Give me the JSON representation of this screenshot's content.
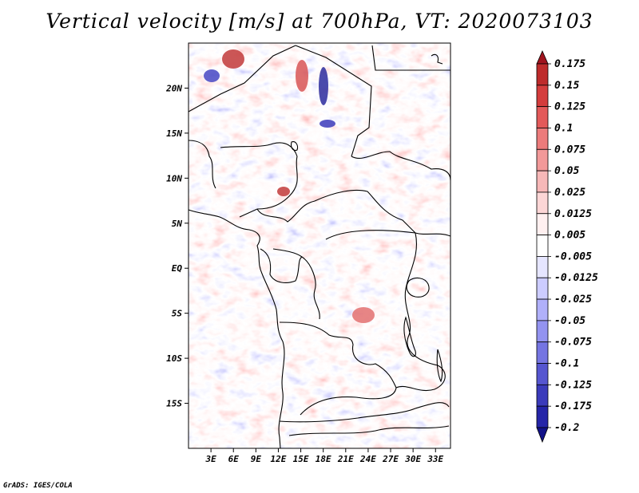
{
  "title": "Vertical velocity [m/s] at 700hPa, VT: 2020073103",
  "credit": "GrADS: IGES/COLA",
  "map": {
    "variable": "Vertical velocity",
    "units": "m/s",
    "level": "700hPa",
    "valid_time": "2020073103",
    "lon_range": [
      0,
      35
    ],
    "lat_range": [
      -20,
      25
    ],
    "x_ticks": [
      {
        "value": 3,
        "label": "3E"
      },
      {
        "value": 6,
        "label": "6E"
      },
      {
        "value": 9,
        "label": "9E"
      },
      {
        "value": 12,
        "label": "12E"
      },
      {
        "value": 15,
        "label": "15E"
      },
      {
        "value": 18,
        "label": "18E"
      },
      {
        "value": 21,
        "label": "21E"
      },
      {
        "value": 24,
        "label": "24E"
      },
      {
        "value": 27,
        "label": "27E"
      },
      {
        "value": 30,
        "label": "30E"
      },
      {
        "value": 33,
        "label": "33E"
      }
    ],
    "y_ticks": [
      {
        "value": 20,
        "label": "20N"
      },
      {
        "value": 15,
        "label": "15N"
      },
      {
        "value": 10,
        "label": "10N"
      },
      {
        "value": 5,
        "label": "5N"
      },
      {
        "value": 0,
        "label": "EQ"
      },
      {
        "value": -5,
        "label": "5S"
      },
      {
        "value": -10,
        "label": "10S"
      },
      {
        "value": -15,
        "label": "15S"
      }
    ]
  },
  "colorbar": {
    "labels": [
      "0.175",
      "0.15",
      "0.125",
      "0.1",
      "0.075",
      "0.05",
      "0.025",
      "0.0125",
      "0.005",
      "-0.005",
      "-0.0125",
      "-0.025",
      "-0.05",
      "-0.075",
      "-0.1",
      "-0.125",
      "-0.175",
      "-0.2"
    ],
    "colors": [
      "#a0141e",
      "#be2b2b",
      "#d43d3d",
      "#e35a5a",
      "#ec7b7b",
      "#f29999",
      "#f7b8b8",
      "#fcd6d6",
      "#fff0f0",
      "#ffffff",
      "#e6e6ff",
      "#ccccff",
      "#b0b0fa",
      "#9393f0",
      "#7575e2",
      "#5656d0",
      "#3b3bbb",
      "#2525a8",
      "#121289"
    ]
  }
}
